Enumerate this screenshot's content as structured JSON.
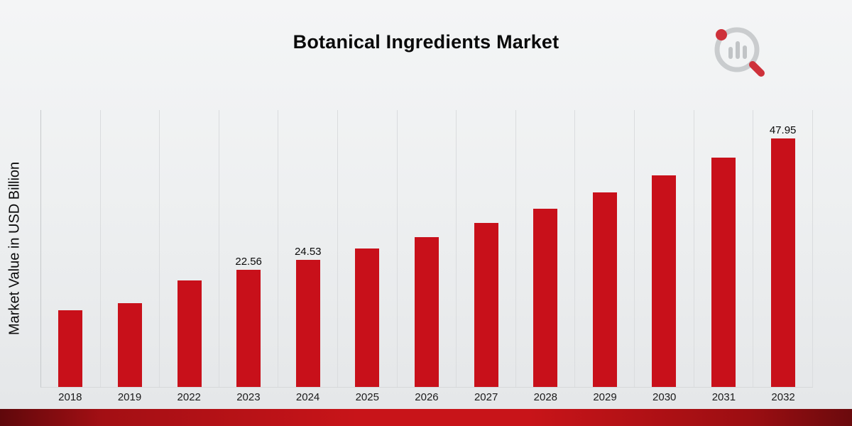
{
  "page": {
    "title": "Botanical Ingredients Market"
  },
  "chart_data": {
    "type": "bar",
    "title": "Botanical Ingredients Market",
    "xlabel": "",
    "ylabel": "Market Value in USD Billion",
    "ylim": [
      0,
      50
    ],
    "grid": "vertical-only",
    "legend": "none",
    "bar_color": "#c8101a",
    "categories": [
      "2018",
      "2019",
      "2022",
      "2023",
      "2024",
      "2025",
      "2026",
      "2027",
      "2028",
      "2029",
      "2030",
      "2031",
      "2032"
    ],
    "points": [
      {
        "year": "2018",
        "value": 14.8,
        "label": ""
      },
      {
        "year": "2019",
        "value": 16.2,
        "label": ""
      },
      {
        "year": "2022",
        "value": 20.6,
        "label": ""
      },
      {
        "year": "2023",
        "value": 22.56,
        "label": "22.56"
      },
      {
        "year": "2024",
        "value": 24.53,
        "label": "24.53"
      },
      {
        "year": "2025",
        "value": 26.7,
        "label": ""
      },
      {
        "year": "2026",
        "value": 28.9,
        "label": ""
      },
      {
        "year": "2027",
        "value": 31.6,
        "label": ""
      },
      {
        "year": "2028",
        "value": 34.4,
        "label": ""
      },
      {
        "year": "2029",
        "value": 37.5,
        "label": ""
      },
      {
        "year": "2030",
        "value": 40.9,
        "label": ""
      },
      {
        "year": "2031",
        "value": 44.3,
        "label": ""
      },
      {
        "year": "2032",
        "value": 47.95,
        "label": "47.95"
      }
    ],
    "labeled_points": {
      "2023": 22.56,
      "2024": 24.53,
      "2032": 47.95
    }
  },
  "branding": {
    "logo_name": "market-research-magnifier-bar-chart-logo",
    "logo_gray": "#c3c6c8",
    "logo_red": "#c8101a"
  },
  "footer": {
    "strip_color": "#c81419"
  }
}
